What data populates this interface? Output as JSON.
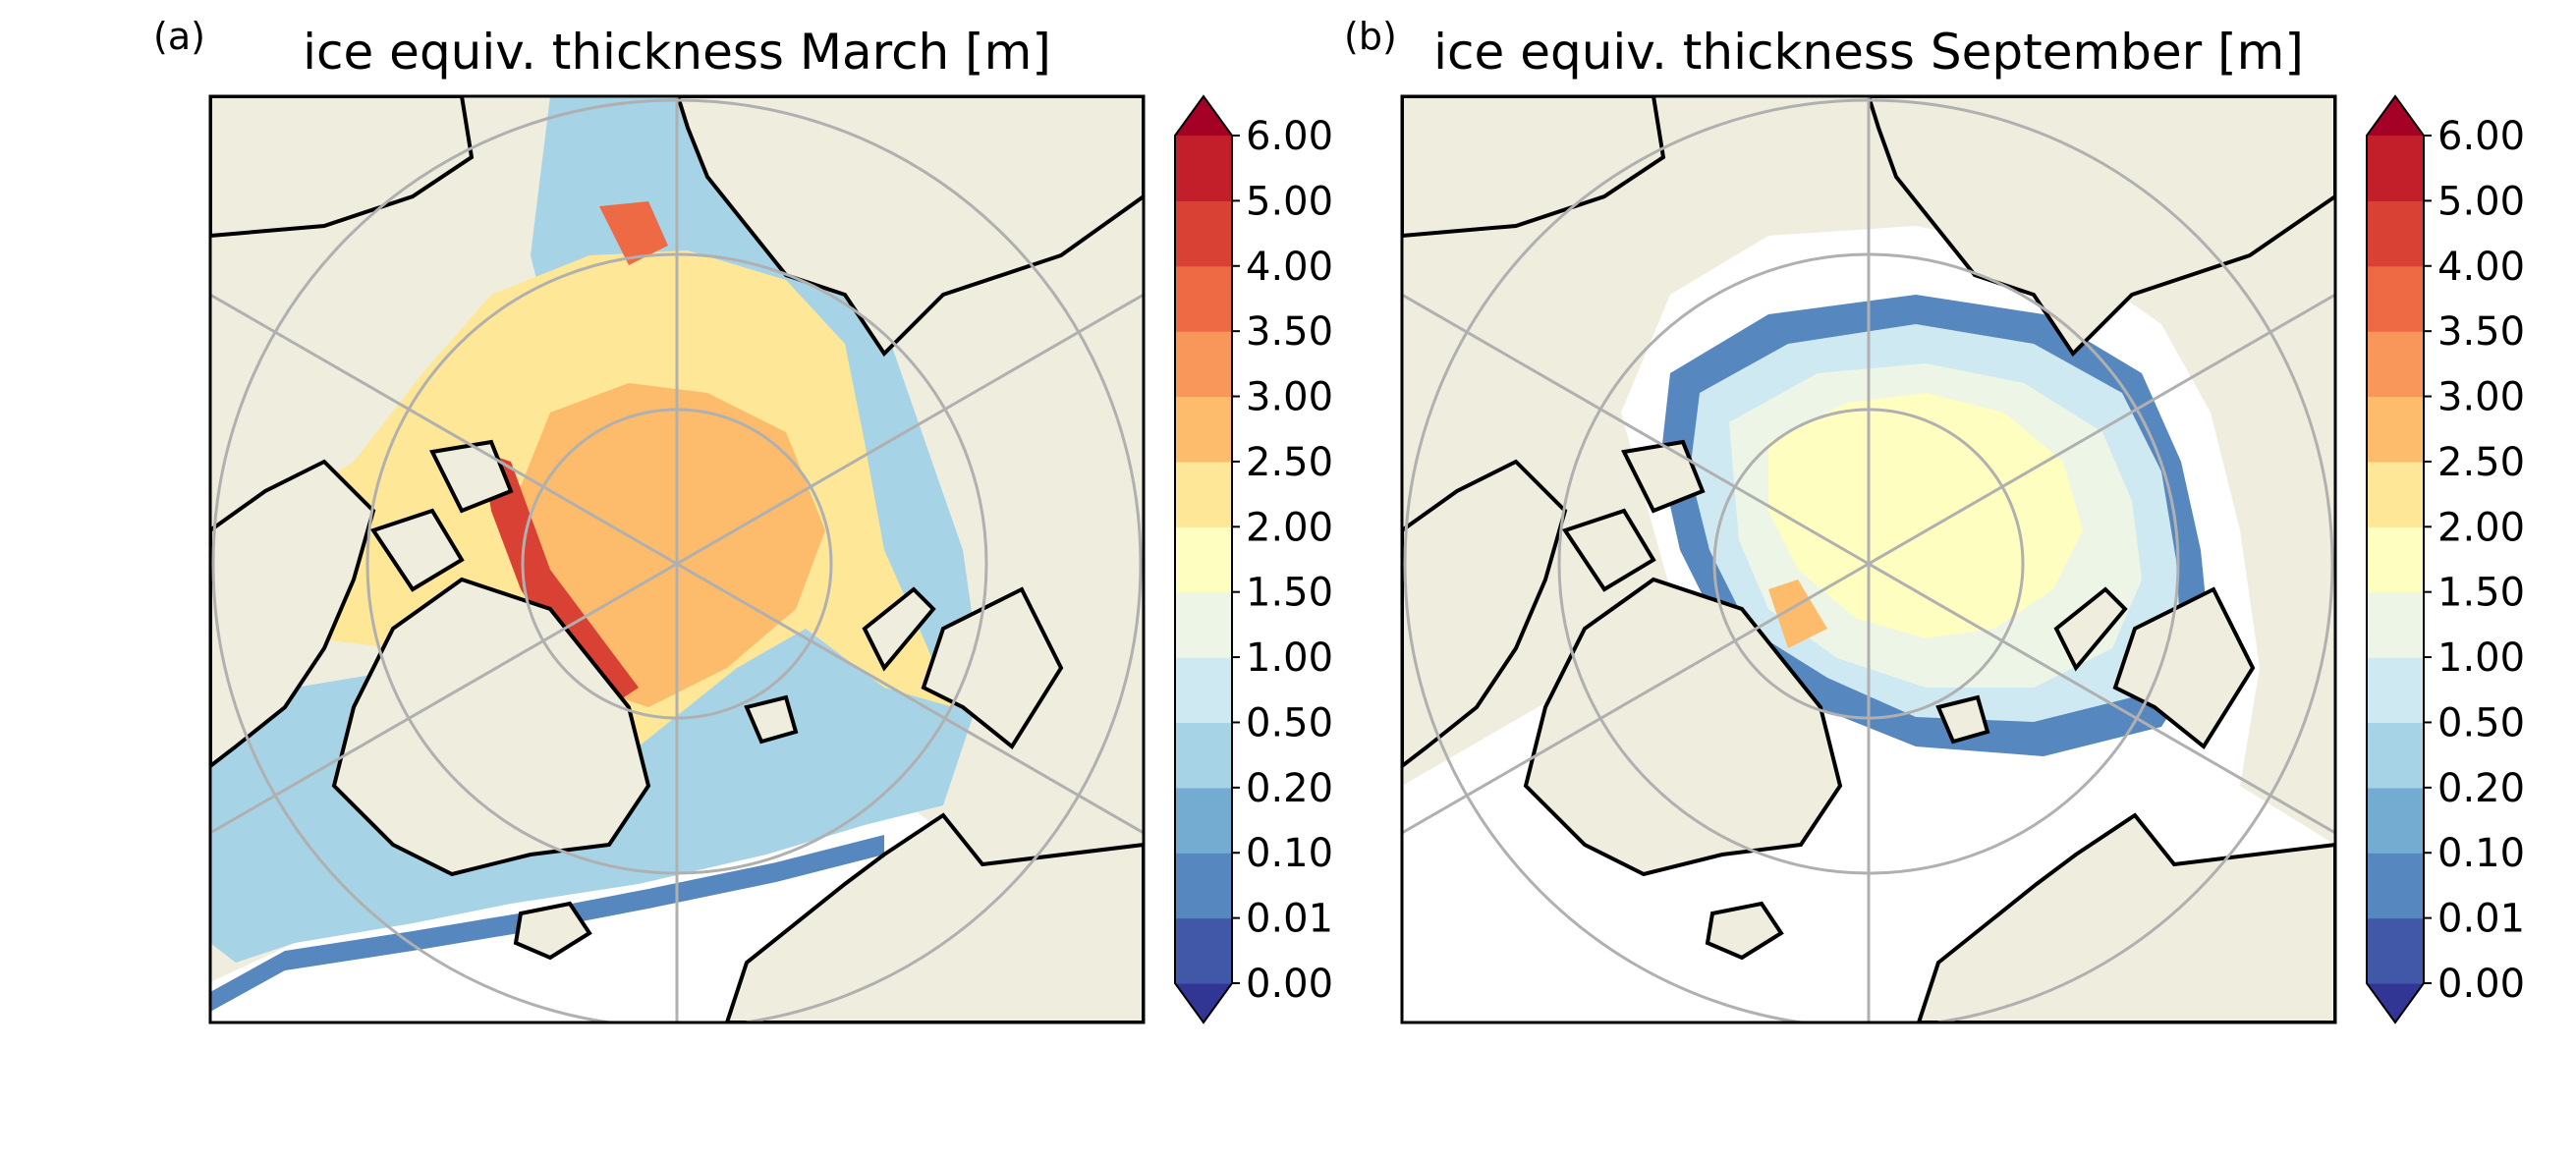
{
  "figure": {
    "panels": [
      {
        "label": "(a)",
        "title": "ice equiv. thickness March [m]",
        "month": "March"
      },
      {
        "label": "(b)",
        "title": "ice equiv. thickness September [m]",
        "month": "September"
      }
    ]
  },
  "colorbar": {
    "levels": [
      "0.00",
      "0.01",
      "0.10",
      "0.20",
      "0.50",
      "1.00",
      "1.50",
      "2.00",
      "2.50",
      "3.00",
      "3.50",
      "4.00",
      "5.00",
      "6.00"
    ],
    "colors": [
      "#313695",
      "#4158a8",
      "#5687be",
      "#74acd1",
      "#a6d3e6",
      "#cfe9f2",
      "#edf6e6",
      "#fefec0",
      "#fee797",
      "#fdbb6c",
      "#f9965a",
      "#ee6a44",
      "#d84133",
      "#c21f2a",
      "#a50026"
    ],
    "extend": "both"
  },
  "map_style": {
    "land_color": "#efedde",
    "ocean_color": "#ffffff",
    "coast_color": "#000000",
    "grid_color": "#b0b0b0",
    "projection": "north polar stereographic"
  }
}
